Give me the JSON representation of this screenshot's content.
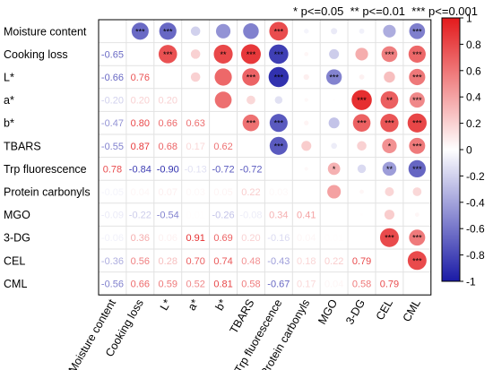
{
  "chart_data": {
    "type": "heatmap",
    "title": "",
    "legend_note": "* p<=0.05  ** p<=0.01  *** p<=0.001",
    "variables": [
      "Moisture content",
      "Cooking loss",
      "L*",
      "a*",
      "b*",
      "TBARS",
      "Trp fluorescence",
      "Protein carbonyls",
      "MGO",
      "3-DG",
      "CEL",
      "CML"
    ],
    "colorbar": {
      "min": -1,
      "max": 1,
      "ticks": [
        "1",
        "0.8",
        "0.6",
        "0.4",
        "0.2",
        "0",
        "-0.2",
        "-0.4",
        "-0.6",
        "-0.8",
        "-1"
      ]
    },
    "lower_triangle": [
      [],
      [
        -0.65
      ],
      [
        -0.66,
        0.76
      ],
      [
        -0.2,
        0.2,
        0.2
      ],
      [
        -0.47,
        0.8,
        0.66,
        0.63
      ],
      [
        -0.55,
        0.87,
        0.68,
        0.17,
        0.62
      ],
      [
        0.78,
        -0.84,
        -0.9,
        -0.13,
        -0.72,
        -0.72
      ],
      [
        -0.05,
        0.04,
        0.07,
        0.03,
        0.05,
        0.22,
        0.03
      ],
      [
        -0.09,
        -0.22,
        -0.54,
        0.01,
        -0.26,
        -0.08,
        0.34,
        0.41
      ],
      [
        -0.06,
        0.36,
        0.06,
        0.91,
        0.69,
        0.2,
        -0.16,
        0.04,
        0.01
      ],
      [
        -0.36,
        0.56,
        0.28,
        0.7,
        0.74,
        0.48,
        -0.43,
        0.18,
        0.22,
        0.79
      ],
      [
        -0.56,
        0.66,
        0.59,
        0.52,
        0.81,
        0.58,
        -0.67,
        0.17,
        0.04,
        0.58,
        0.79
      ]
    ],
    "significance": [
      [],
      [
        "***"
      ],
      [
        "***",
        "***"
      ],
      [
        "",
        "",
        ""
      ],
      [
        "",
        "**",
        "",
        ""
      ],
      [
        "",
        "***",
        "***",
        "",
        "***"
      ],
      [
        "***",
        "***",
        "***",
        "",
        "***",
        "***"
      ],
      [
        "",
        "",
        "",
        "",
        "",
        "",
        ""
      ],
      [
        "",
        "",
        "***",
        "",
        "",
        "",
        "*",
        ""
      ],
      [
        "",
        "",
        "",
        "***",
        "***",
        "",
        "",
        "",
        ""
      ],
      [
        "",
        "***",
        "",
        "**",
        "***",
        "*",
        "**",
        "",
        "",
        "***"
      ],
      [
        "***",
        "***",
        "***",
        "***",
        "***",
        "***",
        "***",
        "",
        "",
        "***",
        "***"
      ]
    ]
  }
}
